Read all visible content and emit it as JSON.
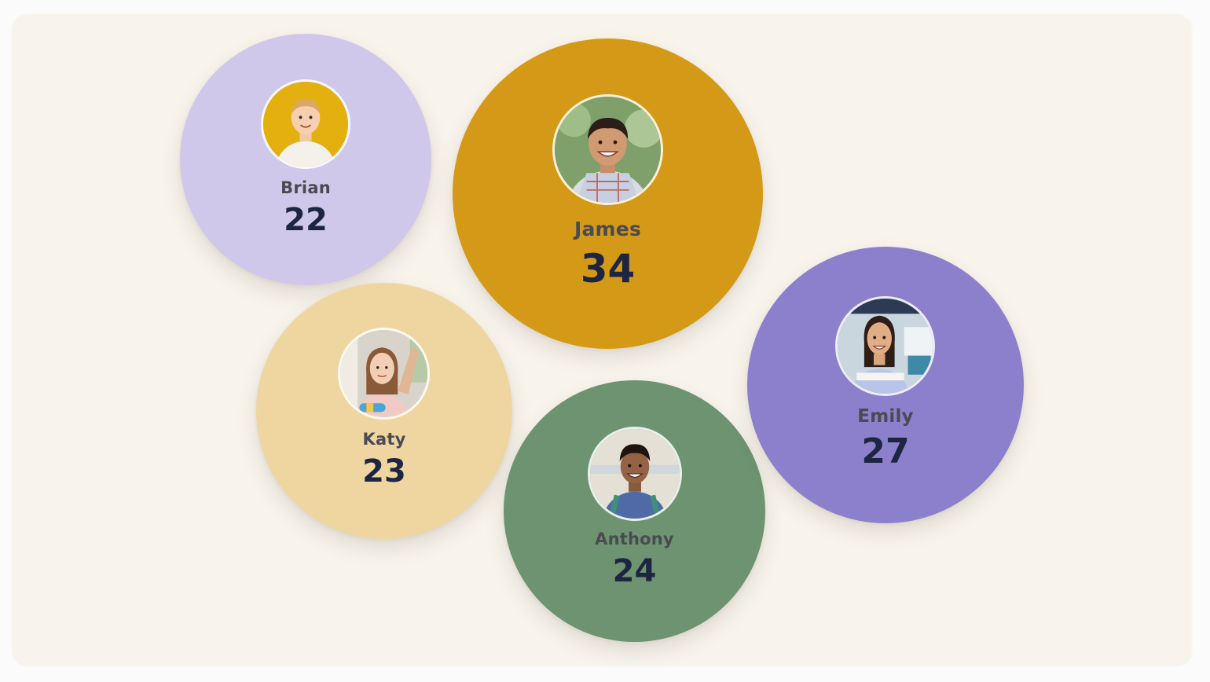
{
  "chart_data": {
    "type": "bubble",
    "title": "",
    "series": [
      {
        "name": "Brian",
        "value": 22,
        "color": "#d0c8ea",
        "avatar_bg": "#e3b00f",
        "avatar_icon": "child-photo"
      },
      {
        "name": "James",
        "value": 34,
        "color": "#d49a17",
        "avatar_bg": "#7fa06a",
        "avatar_icon": "child-photo"
      },
      {
        "name": "Katy",
        "value": 23,
        "color": "#efd6a0",
        "avatar_bg": "#d8d4cc",
        "avatar_icon": "child-photo"
      },
      {
        "name": "Anthony",
        "value": 24,
        "color": "#6d9370",
        "avatar_bg": "#e4e0d6",
        "avatar_icon": "child-photo"
      },
      {
        "name": "Emily",
        "value": 27,
        "color": "#8c80cc",
        "avatar_bg": "#c9d6de",
        "avatar_icon": "child-photo"
      }
    ]
  }
}
